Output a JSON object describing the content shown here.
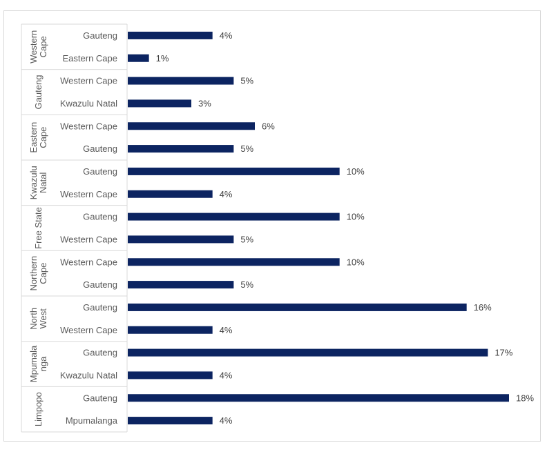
{
  "chart_data": {
    "type": "bar",
    "orientation": "horizontal",
    "title": "",
    "xlabel": "",
    "ylabel": "",
    "grid": false,
    "legend": "none",
    "bar_color": "#0c2461",
    "value_unit": "%",
    "xlim": [
      0,
      18
    ],
    "groups": [
      {
        "name": "Western Cape",
        "label_lines": [
          "Western",
          "Cape"
        ],
        "categories": [
          "Gauteng",
          "Eastern Cape"
        ],
        "values": [
          4,
          1
        ],
        "labels": [
          "4%",
          "1%"
        ]
      },
      {
        "name": "Gauteng",
        "label_lines": [
          "Gauteng"
        ],
        "categories": [
          "Western Cape",
          "Kwazulu Natal"
        ],
        "values": [
          5,
          3
        ],
        "labels": [
          "5%",
          "3%"
        ]
      },
      {
        "name": "Eastern Cape",
        "label_lines": [
          "Eastern",
          "Cape"
        ],
        "categories": [
          "Western Cape",
          "Gauteng"
        ],
        "values": [
          6,
          5
        ],
        "labels": [
          "6%",
          "5%"
        ]
      },
      {
        "name": "Kwazulu Natal",
        "label_lines": [
          "Kwazulu",
          "Natal"
        ],
        "categories": [
          "Gauteng",
          "Western Cape"
        ],
        "values": [
          10,
          4
        ],
        "labels": [
          "10%",
          "4%"
        ]
      },
      {
        "name": "Free State",
        "label_lines": [
          "Free State"
        ],
        "categories": [
          "Gauteng",
          "Western Cape"
        ],
        "values": [
          10,
          5
        ],
        "labels": [
          "10%",
          "5%"
        ]
      },
      {
        "name": "Northern Cape",
        "label_lines": [
          "Northern",
          "Cape"
        ],
        "categories": [
          "Western Cape",
          "Gauteng"
        ],
        "values": [
          10,
          5
        ],
        "labels": [
          "10%",
          "5%"
        ]
      },
      {
        "name": "North West",
        "label_lines": [
          "North",
          "West"
        ],
        "categories": [
          "Gauteng",
          "Western Cape"
        ],
        "values": [
          16,
          4
        ],
        "labels": [
          "16%",
          "4%"
        ]
      },
      {
        "name": "Mpumalanga",
        "label_lines": [
          "Mpumala",
          "nga"
        ],
        "categories": [
          "Gauteng",
          "Kwazulu Natal"
        ],
        "values": [
          17,
          4
        ],
        "labels": [
          "17%",
          "4%"
        ]
      },
      {
        "name": "Limpopo",
        "label_lines": [
          "Limpopo"
        ],
        "categories": [
          "Gauteng",
          "Mpumalanga"
        ],
        "values": [
          18,
          4
        ],
        "labels": [
          "18%",
          "4%"
        ]
      }
    ]
  }
}
